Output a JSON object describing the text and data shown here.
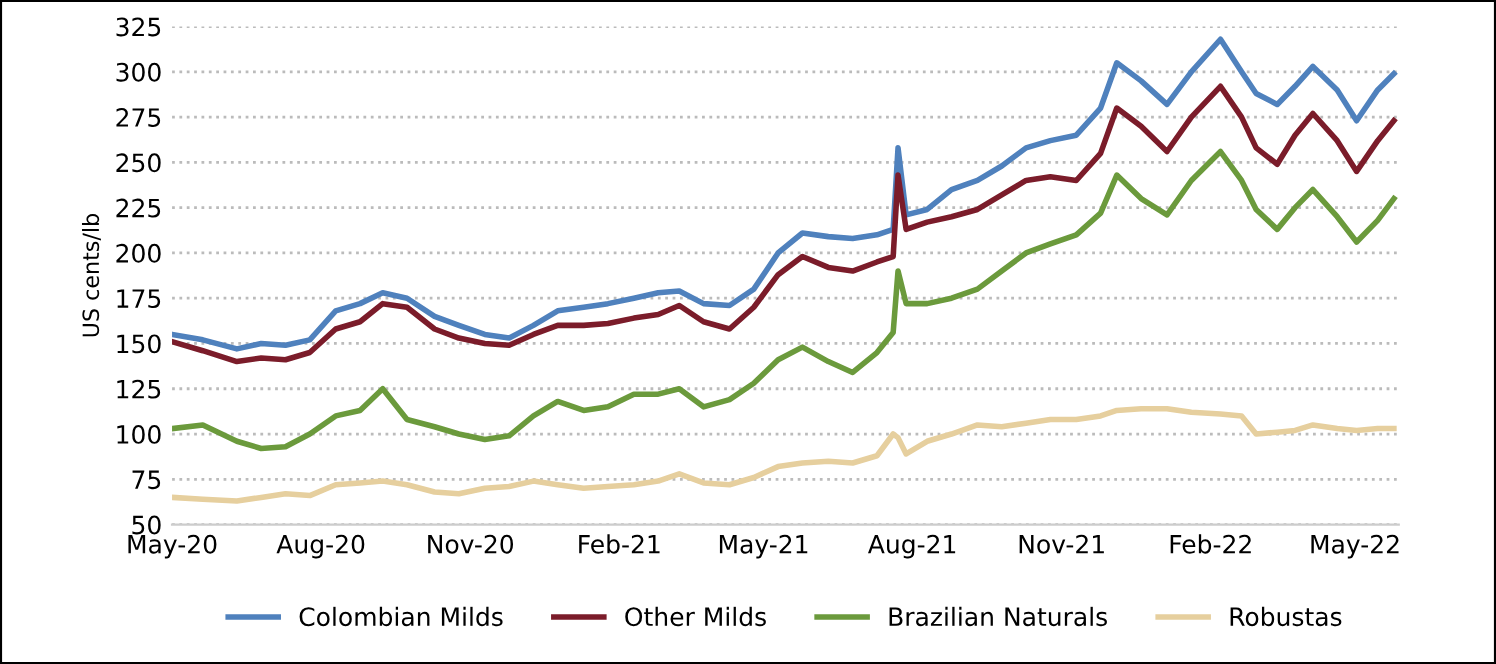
{
  "chart_data": {
    "type": "line",
    "ylabel": "US cents/lb",
    "legend": "bottom",
    "grid": "y",
    "line_style": "solid",
    "marker": "none",
    "x": [
      "2020-05-01",
      "2020-05-20",
      "2020-06-10",
      "2020-06-25",
      "2020-07-10",
      "2020-07-25",
      "2020-08-10",
      "2020-08-25",
      "2020-09-08",
      "2020-09-23",
      "2020-10-10",
      "2020-10-25",
      "2020-11-10",
      "2020-11-25",
      "2020-12-10",
      "2020-12-25",
      "2021-01-10",
      "2021-01-25",
      "2021-02-10",
      "2021-02-25",
      "2021-03-10",
      "2021-03-25",
      "2021-04-10",
      "2021-04-25",
      "2021-05-10",
      "2021-05-25",
      "2021-06-10",
      "2021-06-25",
      "2021-07-10",
      "2021-07-20",
      "2021-07-23",
      "2021-07-28",
      "2021-08-10",
      "2021-08-25",
      "2021-09-10",
      "2021-09-25",
      "2021-10-10",
      "2021-10-25",
      "2021-11-10",
      "2021-11-25",
      "2021-12-05",
      "2021-12-20",
      "2022-01-05",
      "2022-01-20",
      "2022-02-07",
      "2022-02-20",
      "2022-03-01",
      "2022-03-14",
      "2022-03-25",
      "2022-04-05",
      "2022-04-20",
      "2022-05-02",
      "2022-05-15",
      "2022-05-25"
    ],
    "xlim": [
      "2020-05-01",
      "2022-05-28"
    ],
    "xticks": [
      {
        "value": "2020-05-01",
        "label": "May-20"
      },
      {
        "value": "2020-08-01",
        "label": "Aug-20"
      },
      {
        "value": "2020-11-01",
        "label": "Nov-20"
      },
      {
        "value": "2021-02-01",
        "label": "Feb-21"
      },
      {
        "value": "2021-05-01",
        "label": "May-21"
      },
      {
        "value": "2021-08-01",
        "label": "Aug-21"
      },
      {
        "value": "2021-11-01",
        "label": "Nov-21"
      },
      {
        "value": "2022-02-01",
        "label": "Feb-22"
      },
      {
        "value": "2022-05-01",
        "label": "May-22"
      }
    ],
    "ylim": [
      50,
      325
    ],
    "yticks": [
      50,
      75,
      100,
      125,
      150,
      175,
      200,
      225,
      250,
      275,
      300,
      325
    ],
    "series": [
      {
        "name": "Colombian Milds",
        "color": "#4f81bd",
        "values": [
          155,
          152,
          147,
          150,
          149,
          152,
          168,
          172,
          178,
          175,
          165,
          160,
          155,
          153,
          160,
          168,
          170,
          172,
          175,
          178,
          179,
          172,
          171,
          180,
          200,
          211,
          209,
          208,
          210,
          213,
          258,
          221,
          224,
          235,
          240,
          248,
          258,
          262,
          265,
          280,
          305,
          295,
          282,
          300,
          318,
          300,
          288,
          282,
          292,
          303,
          290,
          273,
          290,
          299
        ]
      },
      {
        "name": "Other Milds",
        "color": "#7b1c2a",
        "values": [
          151,
          146,
          140,
          142,
          141,
          145,
          158,
          162,
          172,
          170,
          158,
          153,
          150,
          149,
          155,
          160,
          160,
          161,
          164,
          166,
          171,
          162,
          158,
          170,
          188,
          198,
          192,
          190,
          195,
          198,
          243,
          213,
          217,
          220,
          224,
          232,
          240,
          242,
          240,
          255,
          280,
          270,
          256,
          275,
          292,
          275,
          258,
          249,
          265,
          277,
          262,
          245,
          262,
          273
        ]
      },
      {
        "name": "Brazilian Naturals",
        "color": "#6b9a3c",
        "values": [
          103,
          105,
          96,
          92,
          93,
          100,
          110,
          113,
          125,
          108,
          104,
          100,
          97,
          99,
          110,
          118,
          113,
          115,
          122,
          122,
          125,
          115,
          119,
          128,
          141,
          148,
          140,
          134,
          145,
          156,
          190,
          172,
          172,
          175,
          180,
          190,
          200,
          205,
          210,
          222,
          243,
          230,
          221,
          240,
          256,
          240,
          224,
          213,
          225,
          235,
          220,
          206,
          218,
          230
        ]
      },
      {
        "name": "Robustas",
        "color": "#e6cf9e",
        "values": [
          65,
          64,
          63,
          65,
          67,
          66,
          72,
          73,
          74,
          72,
          68,
          67,
          70,
          71,
          74,
          72,
          70,
          71,
          72,
          74,
          78,
          73,
          72,
          76,
          82,
          84,
          85,
          84,
          88,
          100,
          98,
          89,
          96,
          100,
          105,
          104,
          106,
          108,
          108,
          110,
          113,
          114,
          114,
          112,
          111,
          110,
          100,
          101,
          102,
          105,
          103,
          102,
          103,
          103
        ]
      }
    ]
  }
}
